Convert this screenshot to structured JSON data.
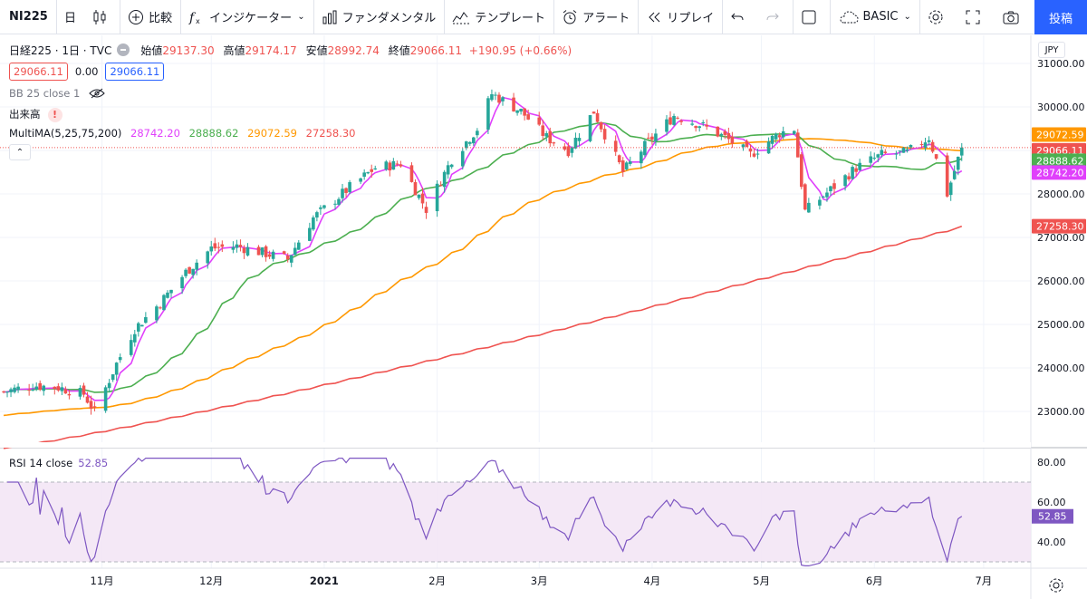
{
  "toolbar": {
    "symbol": "NI225",
    "interval": "日",
    "compare_label": "比較",
    "indicators_label": "インジケーター",
    "fundamentals_label": "ファンダメンタル",
    "templates_label": "テンプレート",
    "alerts_label": "アラート",
    "replay_label": "リプレイ",
    "layout_label": "BASIC",
    "publish_label": "投稿"
  },
  "legend": {
    "symbol_title": "日経225 · 1日 · TVC",
    "open_label": "始値",
    "open_value": "29137.30",
    "high_label": "高値",
    "high_value": "29174.17",
    "low_label": "安値",
    "low_value": "28992.74",
    "close_label": "終値",
    "close_value": "29066.11",
    "change": "+190.95 (+0.66%)",
    "bid": "29066.11",
    "spread": "0.00",
    "ask": "29066.11",
    "bb_label": "BB 25 close 1",
    "volume_label": "出来高",
    "volume_warning": "!",
    "multima_label": "MultiMA(5,25,75,200)",
    "ma5": "28742.20",
    "ma25": "28888.62",
    "ma75": "29072.59",
    "ma200": "27258.30",
    "rsi_label": "RSI 14 close",
    "rsi_value": "52.85"
  },
  "currency": "JPY",
  "colors": {
    "up": "#26a69a",
    "down": "#ef5350",
    "ma5": "#e040fb",
    "ma25": "#4caf50",
    "ma75": "#ff9800",
    "ma200": "#ef5350",
    "rsi": "#7e57c2",
    "accent": "#2962ff"
  },
  "chart_data": {
    "type": "candlestick",
    "ylim": [
      22300,
      31200
    ],
    "y_ticks": [
      "31000.00",
      "30000.00",
      "29000.00",
      "28000.00",
      "27000.00",
      "26000.00",
      "25000.00",
      "24000.00",
      "23000.00"
    ],
    "y_tick_values": [
      31000,
      30000,
      29000,
      28000,
      27000,
      26000,
      25000,
      24000,
      23000
    ],
    "x_labels": [
      "11月",
      "12月",
      "2021",
      "2月",
      "3月",
      "4月",
      "5月",
      "6月",
      "7月"
    ],
    "x_label_dates": [
      "2020-11-01",
      "2020-12-01",
      "2021-01-01",
      "2021-02-01",
      "2021-03-01",
      "2021-04-01",
      "2021-05-01",
      "2021-06-01",
      "2021-07-01"
    ],
    "date_range": [
      "2020-10-05",
      "2021-07-06"
    ],
    "closes": [
      {
        "date": "2020-10-05",
        "close": 23450
      },
      {
        "date": "2020-10-13",
        "close": 23600
      },
      {
        "date": "2020-10-20",
        "close": 23550
      },
      {
        "date": "2020-10-27",
        "close": 23400
      },
      {
        "date": "2020-10-30",
        "close": 22980
      },
      {
        "date": "2020-11-05",
        "close": 24100
      },
      {
        "date": "2020-11-10",
        "close": 24900
      },
      {
        "date": "2020-11-17",
        "close": 25500
      },
      {
        "date": "2020-11-24",
        "close": 26200
      },
      {
        "date": "2020-12-01",
        "close": 26750
      },
      {
        "date": "2020-12-08",
        "close": 26800
      },
      {
        "date": "2020-12-15",
        "close": 26650
      },
      {
        "date": "2020-12-22",
        "close": 26500
      },
      {
        "date": "2020-12-29",
        "close": 27450
      },
      {
        "date": "2021-01-08",
        "close": 28150
      },
      {
        "date": "2021-01-15",
        "close": 28600
      },
      {
        "date": "2021-01-22",
        "close": 28700
      },
      {
        "date": "2021-01-29",
        "close": 27650
      },
      {
        "date": "2021-02-05",
        "close": 28800
      },
      {
        "date": "2021-02-12",
        "close": 29500
      },
      {
        "date": "2021-02-16",
        "close": 30300
      },
      {
        "date": "2021-02-24",
        "close": 29900
      },
      {
        "date": "2021-03-03",
        "close": 29300
      },
      {
        "date": "2021-03-09",
        "close": 29000
      },
      {
        "date": "2021-03-16",
        "close": 29900
      },
      {
        "date": "2021-03-24",
        "close": 28500
      },
      {
        "date": "2021-03-31",
        "close": 29200
      },
      {
        "date": "2021-04-07",
        "close": 29800
      },
      {
        "date": "2021-04-14",
        "close": 29600
      },
      {
        "date": "2021-04-21",
        "close": 29300
      },
      {
        "date": "2021-04-28",
        "close": 28900
      },
      {
        "date": "2021-05-06",
        "close": 29400
      },
      {
        "date": "2021-05-10",
        "close": 29500
      },
      {
        "date": "2021-05-13",
        "close": 27600
      },
      {
        "date": "2021-05-20",
        "close": 28100
      },
      {
        "date": "2021-05-27",
        "close": 28600
      },
      {
        "date": "2021-06-03",
        "close": 28900
      },
      {
        "date": "2021-06-10",
        "close": 28950
      },
      {
        "date": "2021-06-16",
        "close": 29300
      },
      {
        "date": "2021-06-21",
        "close": 28000
      },
      {
        "date": "2021-06-25",
        "close": 29066.11
      }
    ],
    "ma_series": [
      {
        "name": "MA 5",
        "last": 28742.2
      },
      {
        "name": "MA 25",
        "last": 28888.62
      },
      {
        "name": "MA 75",
        "last": 29072.59
      },
      {
        "name": "MA 200",
        "last": 27258.3
      }
    ],
    "rsi": {
      "ylim": [
        25,
        85
      ],
      "y_ticks": [
        "80.00",
        "60.00",
        "40.00"
      ],
      "y_tick_values": [
        80,
        60,
        40
      ],
      "bands": [
        30,
        70
      ],
      "last": 52.85
    }
  }
}
